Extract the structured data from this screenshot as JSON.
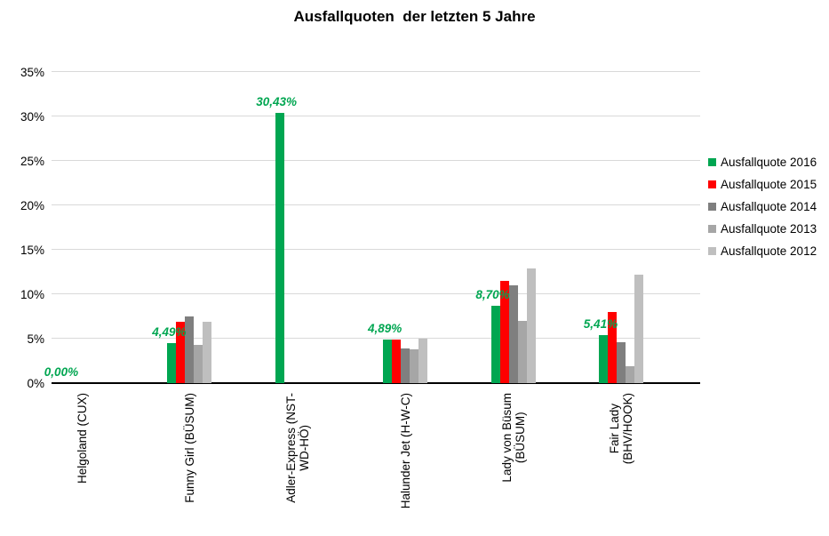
{
  "chart_data": {
    "type": "bar",
    "title": "Ausfallquoten  der letzten 5 Jahre",
    "xlabel": "",
    "ylabel": "",
    "ylim": [
      0,
      35
    ],
    "ytick_step": 5,
    "ytick_labels": [
      "0%",
      "5%",
      "10%",
      "15%",
      "20%",
      "25%",
      "30%",
      "35%"
    ],
    "grid": true,
    "legend_position": "right",
    "categories": [
      "Helgoland (CUX)",
      "Funny Girl (BÜSUM)",
      "Adler-Express (NST-WD-HÖ)",
      "Halunder Jet (H-W-C)",
      "Lady von Büsum (BÜSUM)",
      "Fair Lady (BHV/HOOK)"
    ],
    "categories_wrapped": [
      [
        "Helgoland (CUX)"
      ],
      [
        "Funny Girl (BÜSUM)"
      ],
      [
        "Adler-Express (NST-",
        "WD-HÖ)"
      ],
      [
        "Halunder Jet (H-W-C)"
      ],
      [
        "Lady von Büsum",
        "(BÜSUM)"
      ],
      [
        "Fair Lady",
        "(BHV/HOOK)"
      ]
    ],
    "series": [
      {
        "name": "Ausfallquote 2016",
        "color": "#00A651",
        "values": [
          0,
          4.49,
          30.43,
          4.89,
          8.7,
          5.41
        ]
      },
      {
        "name": "Ausfallquote 2015",
        "color": "#FF0000",
        "values": [
          0,
          6.9,
          0,
          4.9,
          11.5,
          8.0
        ]
      },
      {
        "name": "Ausfallquote 2014",
        "color": "#7F7F7F",
        "values": [
          0,
          7.5,
          0,
          3.9,
          11.0,
          4.6
        ]
      },
      {
        "name": "Ausfallquote 2013",
        "color": "#A6A6A6",
        "values": [
          0,
          4.3,
          0,
          3.8,
          7.0,
          1.9
        ]
      },
      {
        "name": "Ausfallquote 2012",
        "color": "#BFBFBF",
        "values": [
          0,
          6.9,
          0,
          5.0,
          12.9,
          12.2
        ]
      }
    ],
    "data_labels": [
      "0,00%",
      "4,49%",
      "30,43%",
      "4,89%",
      "8,70%",
      "5,41%"
    ],
    "data_label_color": "#00A651",
    "grid_color": "#D9D9D9",
    "axis_color": "#000000"
  }
}
